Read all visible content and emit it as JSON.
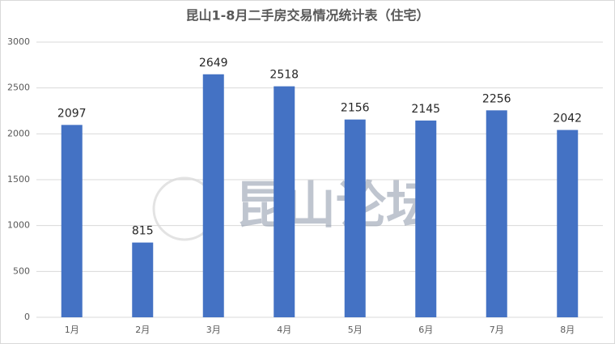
{
  "chart_data": {
    "type": "bar",
    "title": "昆山1-8月二手房交易情况统计表（住宅）",
    "categories": [
      "1月",
      "2月",
      "3月",
      "4月",
      "5月",
      "6月",
      "7月",
      "8月"
    ],
    "values": [
      2097,
      815,
      2649,
      2518,
      2156,
      2145,
      2256,
      2042
    ],
    "color": "#4472c4",
    "ylim": [
      0,
      3000
    ],
    "yticks": [
      0,
      500,
      1000,
      1500,
      2000,
      2500,
      3000
    ],
    "grid": true,
    "watermark": "昆山论坛"
  }
}
